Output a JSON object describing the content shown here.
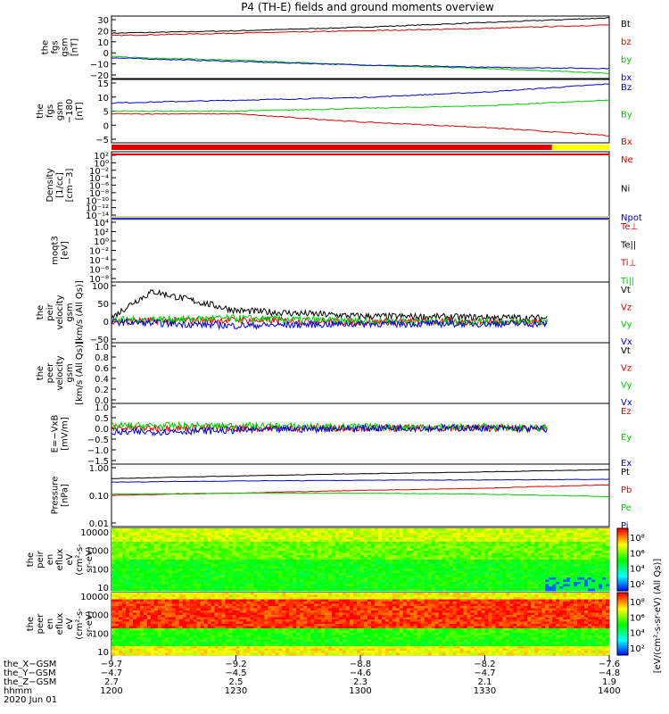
{
  "title": "P4 (TH-E) fields and ground moments overview",
  "colors": {
    "black": "#000000",
    "red": "#e00000",
    "green": "#00cc00",
    "blue": "#0000cc",
    "yellow": "#ffff00"
  },
  "chart_data": [
    {
      "id": "fgs_gsm",
      "type": "line",
      "ylabel_lines": [
        "the",
        "fgs",
        "gsm",
        "[nT]"
      ],
      "yticks": [
        "30",
        "20",
        "10",
        "0",
        "−10",
        "−20"
      ],
      "ylim": [
        -20,
        30
      ],
      "series": [
        {
          "name": "Bt",
          "color": "#000000",
          "x": [
            "1200",
            "1230",
            "1300",
            "1330",
            "1400"
          ],
          "values": [
            17,
            19,
            22,
            26,
            30
          ]
        },
        {
          "name": "bz",
          "color": "#e00000",
          "x": [
            "1200",
            "1230",
            "1300",
            "1330",
            "1400"
          ],
          "values": [
            15,
            17,
            19,
            21,
            24
          ]
        },
        {
          "name": "by",
          "color": "#00cc00",
          "x": [
            "1200",
            "1230",
            "1300",
            "1330",
            "1400"
          ],
          "values": [
            -3,
            -6,
            -10,
            -13,
            -17
          ]
        },
        {
          "name": "bx",
          "color": "#0000cc",
          "x": [
            "1200",
            "1230",
            "1300",
            "1330",
            "1400"
          ],
          "values": [
            -4,
            -7,
            -10,
            -12,
            -13
          ]
        }
      ]
    },
    {
      "id": "fgs_gsm_dsl",
      "type": "line",
      "ylabel_lines": [
        "the",
        "fgs",
        "gsm",
        "−180",
        "[nT]"
      ],
      "yticks": [
        "15",
        "10",
        "5",
        "0",
        "−5"
      ],
      "ylim": [
        -7,
        15
      ],
      "series": [
        {
          "name": "Bz",
          "color": "#0000cc",
          "x": [
            "1200",
            "1230",
            "1300",
            "1330",
            "1400"
          ],
          "values": [
            7,
            8,
            9,
            11,
            14
          ]
        },
        {
          "name": "By",
          "color": "#00cc00",
          "x": [
            "1200",
            "1230",
            "1300",
            "1330",
            "1400"
          ],
          "values": [
            4,
            4,
            5,
            6,
            8
          ]
        },
        {
          "name": "Bx",
          "color": "#e00000",
          "x": [
            "1200",
            "1230",
            "1300",
            "1330",
            "1400"
          ],
          "values": [
            3,
            3,
            0,
            -2,
            -5
          ]
        }
      ]
    },
    {
      "id": "density",
      "type": "line",
      "ylabel_lines": [
        "Density",
        "[1/cc]",
        "[cm−3]"
      ],
      "yticks": [
        "10²",
        "10⁰",
        "10⁻²",
        "10⁻⁴",
        "10⁻⁶",
        "10⁻⁸",
        "10⁻¹⁰",
        "10⁻¹²",
        "10⁻¹⁴"
      ],
      "series": [
        {
          "name": "Ne",
          "color": "#e00000"
        },
        {
          "name": "Ni",
          "color": "#000000"
        },
        {
          "name": "Npot",
          "color": "#0000cc"
        }
      ]
    },
    {
      "id": "temperature",
      "type": "line",
      "ylabel_lines": [
        "moqt3",
        "[eV]"
      ],
      "yticks": [
        "10⁴",
        "10²",
        "10⁰",
        "10⁻²",
        "10⁻⁴",
        "10⁻⁶",
        "10⁻⁸"
      ],
      "series": [
        {
          "name": "Te⊥",
          "color": "#e00000"
        },
        {
          "name": "Te||",
          "color": "#000000"
        },
        {
          "name": "Ti⊥",
          "color": "#e00000"
        },
        {
          "name": "Ti||",
          "color": "#00cc00"
        }
      ]
    },
    {
      "id": "peir_velocity",
      "type": "line",
      "ylabel_lines": [
        "the",
        "peir",
        "velocity",
        "gsm",
        "[km/s (All Qs)]"
      ],
      "yticks": [
        "100",
        "50",
        "0",
        "−50"
      ],
      "ylim": [
        -50,
        100
      ],
      "series": [
        {
          "name": "Vt",
          "color": "#000000",
          "x": [
            "1200",
            "1205",
            "1210",
            "1230",
            "1300",
            "1330",
            "1345"
          ],
          "values": [
            10,
            50,
            80,
            30,
            15,
            12,
            10
          ]
        },
        {
          "name": "Vz",
          "color": "#e00000",
          "x": [
            "1200",
            "1230",
            "1300",
            "1330",
            "1345"
          ],
          "values": [
            2,
            5,
            0,
            0,
            0
          ]
        },
        {
          "name": "Vy",
          "color": "#00cc00",
          "x": [
            "1200",
            "1230",
            "1300",
            "1330",
            "1345"
          ],
          "values": [
            5,
            10,
            2,
            0,
            0
          ]
        },
        {
          "name": "Vx",
          "color": "#0000cc",
          "x": [
            "1200",
            "1230",
            "1300",
            "1330",
            "1345"
          ],
          "values": [
            0,
            -10,
            -5,
            -5,
            -5
          ]
        }
      ]
    },
    {
      "id": "peer_velocity",
      "type": "line",
      "ylabel_lines": [
        "the",
        "peer",
        "velocity",
        "gsm",
        "[km/s (All Qs)]"
      ],
      "yticks": [
        "1.0",
        "0.8",
        "0.6",
        "0.4",
        "0.2",
        "0.0"
      ],
      "series": [
        {
          "name": "Vt",
          "color": "#000000"
        },
        {
          "name": "Vz",
          "color": "#e00000"
        },
        {
          "name": "Vy",
          "color": "#00cc00"
        },
        {
          "name": "Vx",
          "color": "#0000cc"
        }
      ]
    },
    {
      "id": "efield",
      "type": "line",
      "ylabel_lines": [
        "E=−VxB",
        "[mV/m]"
      ],
      "yticks": [
        "1.0",
        "0.5",
        "0.0",
        "−0.5",
        "−1.0",
        "−1.5"
      ],
      "ylim": [
        -1.5,
        1.0
      ],
      "series": [
        {
          "name": "Ez",
          "color": "#e00000",
          "x": [
            "1200",
            "1230",
            "1300",
            "1330",
            "1345"
          ],
          "values": [
            0,
            0,
            0,
            0,
            0
          ]
        },
        {
          "name": "Ey",
          "color": "#00cc00",
          "x": [
            "1200",
            "1230",
            "1300",
            "1330",
            "1345"
          ],
          "values": [
            0.1,
            0.1,
            0.05,
            0.05,
            0.0
          ]
        },
        {
          "name": "Ex",
          "color": "#0000cc",
          "x": [
            "1200",
            "1230",
            "1300",
            "1330",
            "1345"
          ],
          "values": [
            -0.2,
            -0.1,
            0,
            0,
            -0.05
          ]
        }
      ]
    },
    {
      "id": "pressure",
      "type": "line",
      "ylabel_lines": [
        "Pressure",
        "[nPa]"
      ],
      "yticks": [
        "1.00",
        "0.10",
        "0.01"
      ],
      "series": [
        {
          "name": "Pt",
          "color": "#000000",
          "x": [
            "1200",
            "1230",
            "1300",
            "1330",
            "1400"
          ],
          "values": [
            0.4,
            0.5,
            0.6,
            0.7,
            0.85
          ]
        },
        {
          "name": "Pb",
          "color": "#e00000",
          "x": [
            "1200",
            "1230",
            "1300",
            "1330",
            "1400"
          ],
          "values": [
            0.1,
            0.12,
            0.15,
            0.18,
            0.24
          ]
        },
        {
          "name": "Pe",
          "color": "#00cc00",
          "x": [
            "1200",
            "1230",
            "1300",
            "1330",
            "1400"
          ],
          "values": [
            0.11,
            0.12,
            0.12,
            0.11,
            0.09
          ]
        },
        {
          "name": "Pi",
          "color": "#0000cc",
          "x": [
            "1200",
            "1230",
            "1300",
            "1330",
            "1400"
          ],
          "values": [
            0.3,
            0.33,
            0.35,
            0.36,
            0.38
          ]
        }
      ]
    },
    {
      "id": "peir_eflux",
      "type": "heatmap",
      "ylabel_lines": [
        "the",
        "peir",
        "en",
        "eflux",
        "eV",
        "(cm²-s-",
        "sr-eV)"
      ],
      "yticks": [
        "10000",
        "1000",
        "100",
        "10"
      ]
    },
    {
      "id": "peer_eflux",
      "type": "heatmap",
      "ylabel_lines": [
        "the",
        "peer",
        "en",
        "eflux",
        "eV",
        "(cm²-s-",
        "sr-eV)"
      ],
      "yticks": [
        "10000",
        "1000",
        "100",
        "10"
      ]
    }
  ],
  "colorbar": {
    "label": "[eV/(cm²-s-sr-eV) (All Qs)]",
    "ticks_top": [
      "10⁸",
      "10⁶",
      "10⁴",
      "10²"
    ],
    "ticks_bottom": [
      "10⁸",
      "10⁶",
      "10⁴",
      "10²"
    ]
  },
  "xaxis": {
    "row_labels": [
      "the_X−GSM",
      "the_Y−GSM",
      "the_Z−GSM",
      "hhmm",
      "2020 Jun 01"
    ],
    "columns": [
      [
        "−9.7",
        "−4.7",
        "2.7",
        "1200"
      ],
      [
        "−9.2",
        "−4.5",
        "2.5",
        "1230"
      ],
      [
        "−8.8",
        "−4.6",
        "2.3",
        "1300"
      ],
      [
        "−8.2",
        "−4.7",
        "2.1",
        "1330"
      ],
      [
        "−7.6",
        "−4.8",
        "1.9",
        "1400"
      ]
    ]
  }
}
